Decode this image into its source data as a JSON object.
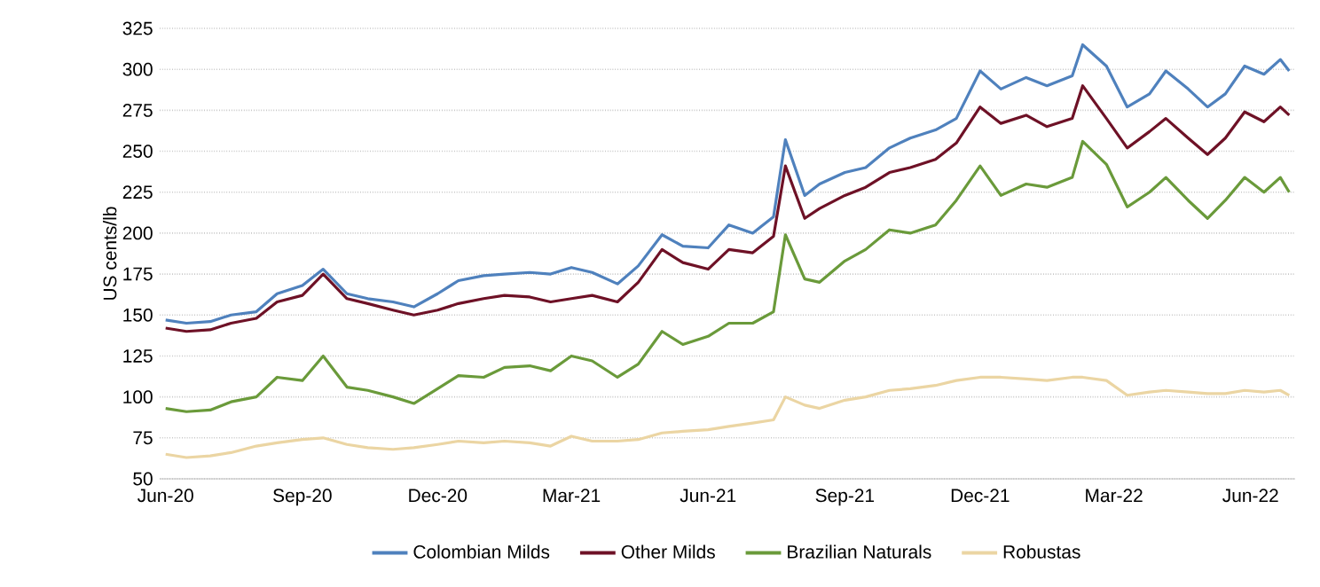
{
  "chart_data": {
    "type": "line",
    "ylabel": "US cents/lb",
    "legend": "bottom",
    "grid": "y",
    "x": [
      "2020-06-01",
      "2020-06-15",
      "2020-07-01",
      "2020-07-15",
      "2020-08-01",
      "2020-08-15",
      "2020-09-01",
      "2020-09-15",
      "2020-10-01",
      "2020-10-15",
      "2020-11-01",
      "2020-11-15",
      "2020-12-01",
      "2020-12-15",
      "2021-01-01",
      "2021-01-15",
      "2021-02-01",
      "2021-02-15",
      "2021-03-01",
      "2021-03-15",
      "2021-04-01",
      "2021-04-15",
      "2021-05-01",
      "2021-05-15",
      "2021-06-01",
      "2021-06-15",
      "2021-07-01",
      "2021-07-15",
      "2021-07-23",
      "2021-08-05",
      "2021-08-15",
      "2021-09-01",
      "2021-09-15",
      "2021-10-01",
      "2021-10-15",
      "2021-11-01",
      "2021-11-15",
      "2021-12-01",
      "2021-12-15",
      "2022-01-01",
      "2022-01-15",
      "2022-02-01",
      "2022-02-08",
      "2022-02-24",
      "2022-03-10",
      "2022-03-25",
      "2022-04-05",
      "2022-04-20",
      "2022-05-03",
      "2022-05-15",
      "2022-05-28",
      "2022-06-10",
      "2022-06-21",
      "2022-06-27"
    ],
    "series": [
      {
        "name": "Colombian Milds",
        "color": "#4f81bd",
        "values": [
          147,
          145,
          146,
          150,
          152,
          163,
          168,
          178,
          163,
          160,
          158,
          155,
          163,
          171,
          174,
          175,
          176,
          175,
          179,
          176,
          169,
          180,
          199,
          192,
          191,
          205,
          200,
          210,
          257,
          223,
          230,
          237,
          240,
          252,
          258,
          263,
          270,
          299,
          288,
          295,
          290,
          296,
          315,
          302,
          277,
          285,
          299,
          288,
          277,
          285,
          302,
          297,
          306,
          299
        ]
      },
      {
        "name": "Other Milds",
        "color": "#6e1126",
        "values": [
          142,
          140,
          141,
          145,
          148,
          158,
          162,
          175,
          160,
          157,
          153,
          150,
          153,
          157,
          160,
          162,
          161,
          158,
          160,
          162,
          158,
          170,
          190,
          182,
          178,
          190,
          188,
          198,
          241,
          209,
          215,
          223,
          228,
          237,
          240,
          245,
          255,
          277,
          267,
          272,
          265,
          270,
          290,
          270,
          252,
          262,
          270,
          258,
          248,
          258,
          274,
          268,
          277,
          272
        ]
      },
      {
        "name": "Brazilian Naturals",
        "color": "#6a9a3a",
        "values": [
          93,
          91,
          92,
          97,
          100,
          112,
          110,
          125,
          106,
          104,
          100,
          96,
          105,
          113,
          112,
          118,
          119,
          116,
          125,
          122,
          112,
          120,
          140,
          132,
          137,
          145,
          145,
          152,
          199,
          172,
          170,
          183,
          190,
          202,
          200,
          205,
          220,
          241,
          223,
          230,
          228,
          234,
          256,
          242,
          216,
          225,
          234,
          220,
          209,
          220,
          234,
          225,
          234,
          225
        ]
      },
      {
        "name": "Robustas",
        "color": "#ebd5a3",
        "values": [
          65,
          63,
          64,
          66,
          70,
          72,
          74,
          75,
          71,
          69,
          68,
          69,
          71,
          73,
          72,
          73,
          72,
          70,
          76,
          73,
          73,
          74,
          78,
          79,
          80,
          82,
          84,
          86,
          100,
          95,
          93,
          98,
          100,
          104,
          105,
          107,
          110,
          112,
          112,
          111,
          110,
          112,
          112,
          110,
          101,
          103,
          104,
          103,
          102,
          102,
          104,
          103,
          104,
          101
        ]
      }
    ],
    "xlim": [
      "2020-05-28",
      "2022-07-01"
    ],
    "xticks": [
      {
        "value": "2020-06-01",
        "label": "Jun-20"
      },
      {
        "value": "2020-09-01",
        "label": "Sep-20"
      },
      {
        "value": "2020-12-01",
        "label": "Dec-20"
      },
      {
        "value": "2021-03-01",
        "label": "Mar-21"
      },
      {
        "value": "2021-06-01",
        "label": "Jun-21"
      },
      {
        "value": "2021-09-01",
        "label": "Sep-21"
      },
      {
        "value": "2021-12-01",
        "label": "Dec-21"
      },
      {
        "value": "2022-03-01",
        "label": "Mar-22"
      },
      {
        "value": "2022-06-01",
        "label": "Jun-22"
      }
    ],
    "ylim": [
      50,
      325
    ],
    "yticks": [
      50,
      75,
      100,
      125,
      150,
      175,
      200,
      225,
      250,
      275,
      300,
      325
    ]
  }
}
